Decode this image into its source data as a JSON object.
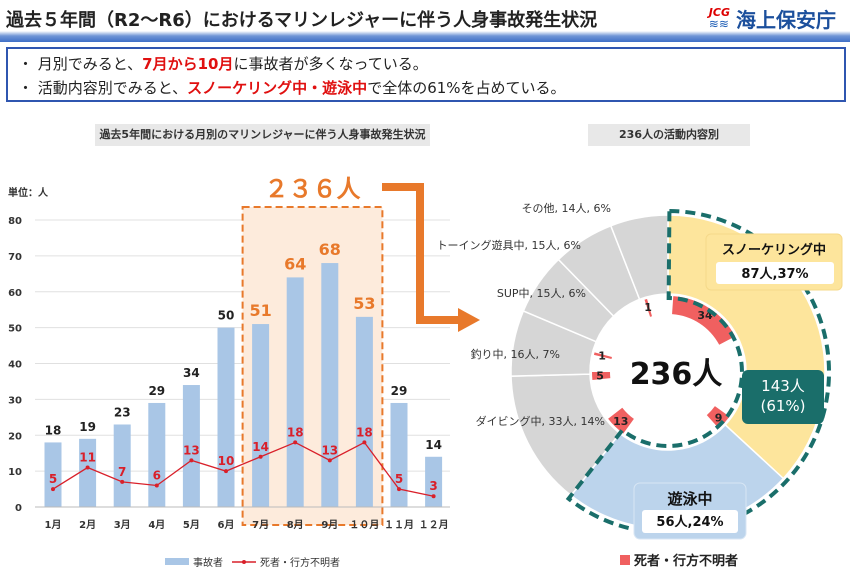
{
  "header": {
    "title": "過去５年間（R2〜R6）におけるマリンレジャーに伴う人身事故発生状況",
    "logo_abbr": "JCG",
    "logo_name": "海上保安庁"
  },
  "summary": {
    "line1": {
      "pre": "・ 月別でみると、",
      "hl": "7月から10月",
      "post": "に事故者が多くなっている。"
    },
    "line2": {
      "pre": "・ 活動内容別でみると、",
      "hl": "スノーケリング中・遊泳中",
      "post": "で全体の61%を占めている。"
    }
  },
  "colors": {
    "bar": "#a9c6e6",
    "line": "#d9202a",
    "highlight_fill": "#fdebdc",
    "highlight_border": "#e8792b",
    "snorkel": "#fde59c",
    "swim": "#bcd4ec",
    "other": "#d6d6d6",
    "fatal": "#f06060",
    "group": "#1a6e6a"
  },
  "chart_data": [
    {
      "type": "bar",
      "title": "過去5年間における月別のマリンレジャーに伴う人身事故発生状況",
      "unit_label": "単位：人",
      "categories": [
        "1月",
        "2月",
        "3月",
        "4月",
        "5月",
        "6月",
        "7月",
        "8月",
        "9月",
        "１０月",
        "１１月",
        "１２月"
      ],
      "ylim": [
        0,
        80
      ],
      "yticks": [
        0,
        10,
        20,
        30,
        40,
        50,
        60,
        70,
        80
      ],
      "series": [
        {
          "name": "事故者",
          "type": "bar",
          "values": [
            18,
            19,
            23,
            29,
            34,
            50,
            51,
            64,
            68,
            53,
            29,
            14
          ]
        },
        {
          "name": "死者・行方不明者",
          "type": "line",
          "values": [
            5,
            11,
            7,
            6,
            13,
            10,
            14,
            18,
            13,
            18,
            5,
            3
          ]
        }
      ],
      "highlight": {
        "range": [
          "7月",
          "１０月"
        ],
        "label": "２３６人"
      }
    },
    {
      "type": "pie",
      "title": "236人の活動内容別",
      "center_label": "236人",
      "slices": [
        {
          "name": "スノーケリング中",
          "count": 87,
          "pct": 37,
          "label": "87人,37%",
          "fatal": 34
        },
        {
          "name": "遊泳中",
          "count": 56,
          "pct": 24,
          "label": "56人,24%",
          "fatal": 9
        },
        {
          "name": "ダイビング中",
          "count": 33,
          "pct": 14,
          "label": "ダイビング中, 33人, 14%",
          "fatal": 13
        },
        {
          "name": "釣り中",
          "count": 16,
          "pct": 7,
          "label": "釣り中, 16人, 7%",
          "fatal": 5
        },
        {
          "name": "SUP中",
          "count": 15,
          "pct": 6,
          "label": "SUP中, 15人, 6%",
          "fatal": 1
        },
        {
          "name": "トーイング遊具中",
          "count": 15,
          "pct": 6,
          "label": "トーイング遊具中, 15人, 6%",
          "fatal": 0
        },
        {
          "name": "その他",
          "count": 14,
          "pct": 6,
          "label": "その他, 14人, 6%",
          "fatal": 1
        }
      ],
      "group_label": "143人",
      "group_pct": "(61%)",
      "legend": "死者・行方不明者"
    }
  ]
}
